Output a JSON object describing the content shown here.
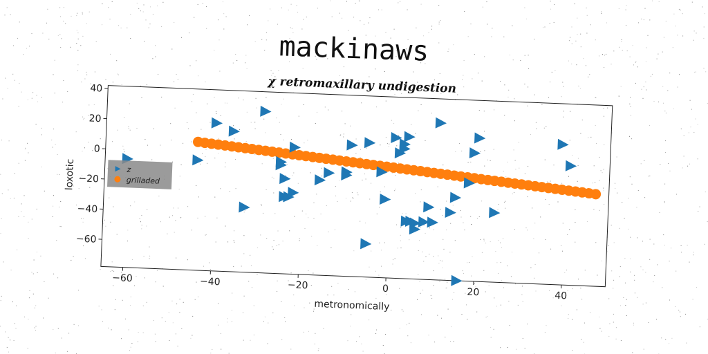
{
  "page_title": "mackinaws",
  "chart_data": {
    "type": "scatter",
    "title": "χ retromaxillary undigestion",
    "xlabel": "metronomically",
    "ylabel": "loxotic",
    "xlim": [
      -65,
      50
    ],
    "ylim": [
      -78,
      42
    ],
    "xticks": [
      -60,
      -40,
      -20,
      0,
      20,
      40
    ],
    "yticks": [
      40,
      20,
      0,
      -20,
      -40,
      -60
    ],
    "grid": false,
    "legend_position": "center-left",
    "series": [
      {
        "name": "z",
        "marker": "triangle-right",
        "color": "#1f77b4",
        "points": [
          [
            -60,
            -6
          ],
          [
            -44,
            -5
          ],
          [
            -40,
            20
          ],
          [
            -36,
            15
          ],
          [
            -33,
            -35
          ],
          [
            -29,
            29
          ],
          [
            -25,
            -4
          ],
          [
            -25,
            -6
          ],
          [
            -24,
            -15
          ],
          [
            -24,
            -27
          ],
          [
            -23,
            -27
          ],
          [
            -22,
            -24
          ],
          [
            -22,
            6
          ],
          [
            -16,
            -15
          ],
          [
            -14,
            -10
          ],
          [
            -10,
            -9
          ],
          [
            -10,
            -11
          ],
          [
            -9,
            9
          ],
          [
            -5,
            11
          ],
          [
            -5,
            -56
          ],
          [
            -2,
            -8
          ],
          [
            -1,
            -26
          ],
          [
            1,
            15
          ],
          [
            2,
            5
          ],
          [
            3,
            8
          ],
          [
            3,
            11
          ],
          [
            4,
            16
          ],
          [
            4,
            -40
          ],
          [
            5,
            -40
          ],
          [
            6,
            -41
          ],
          [
            6,
            -45
          ],
          [
            8,
            -40
          ],
          [
            9,
            -30
          ],
          [
            10,
            -40
          ],
          [
            14,
            -33
          ],
          [
            15,
            -23
          ],
          [
            11,
            26
          ],
          [
            16,
            -78
          ],
          [
            18,
            -13
          ],
          [
            19,
            7
          ],
          [
            20,
            17
          ],
          [
            24,
            -32
          ],
          [
            39,
            15
          ],
          [
            41,
            1
          ]
        ]
      },
      {
        "name": "grilladed",
        "marker": "circle",
        "color": "#ff7f0e",
        "x_start": -44,
        "x_end": 47,
        "y_start": 7,
        "y_end": -17,
        "count": 60
      }
    ]
  }
}
